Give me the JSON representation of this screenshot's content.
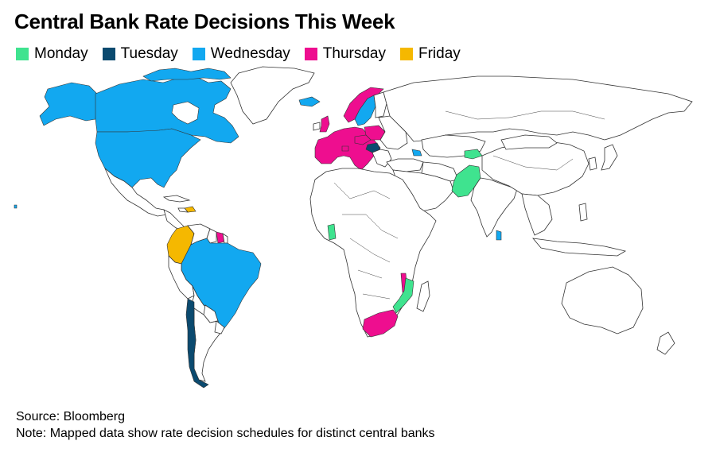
{
  "title": "Central Bank Rate Decisions This Week",
  "legend": [
    {
      "label": "Monday",
      "color": "#3fe38f"
    },
    {
      "label": "Tuesday",
      "color": "#0b4a6f"
    },
    {
      "label": "Wednesday",
      "color": "#12a8f0"
    },
    {
      "label": "Thursday",
      "color": "#ee0e8f"
    },
    {
      "label": "Friday",
      "color": "#f5b800"
    }
  ],
  "footer": {
    "source": "Source: Bloomberg",
    "note": "Note: Mapped data show rate decision schedules for distinct central banks"
  },
  "map": {
    "monday": [
      "Pakistan",
      "Kyrgyzstan",
      "Ghana",
      "Mozambique"
    ],
    "tuesday": [
      "Chile",
      "Hungary"
    ],
    "wednesday": [
      "United States",
      "Canada",
      "Brazil",
      "Iceland",
      "Sweden",
      "Sri Lanka",
      "Azerbaijan"
    ],
    "thursday": [
      "European Union",
      "Norway",
      "United Kingdom",
      "Switzerland",
      "Poland",
      "Czech Republic",
      "South Africa",
      "Malawi",
      "Suriname"
    ],
    "friday": [
      "Colombia",
      "Dominican Republic"
    ]
  }
}
